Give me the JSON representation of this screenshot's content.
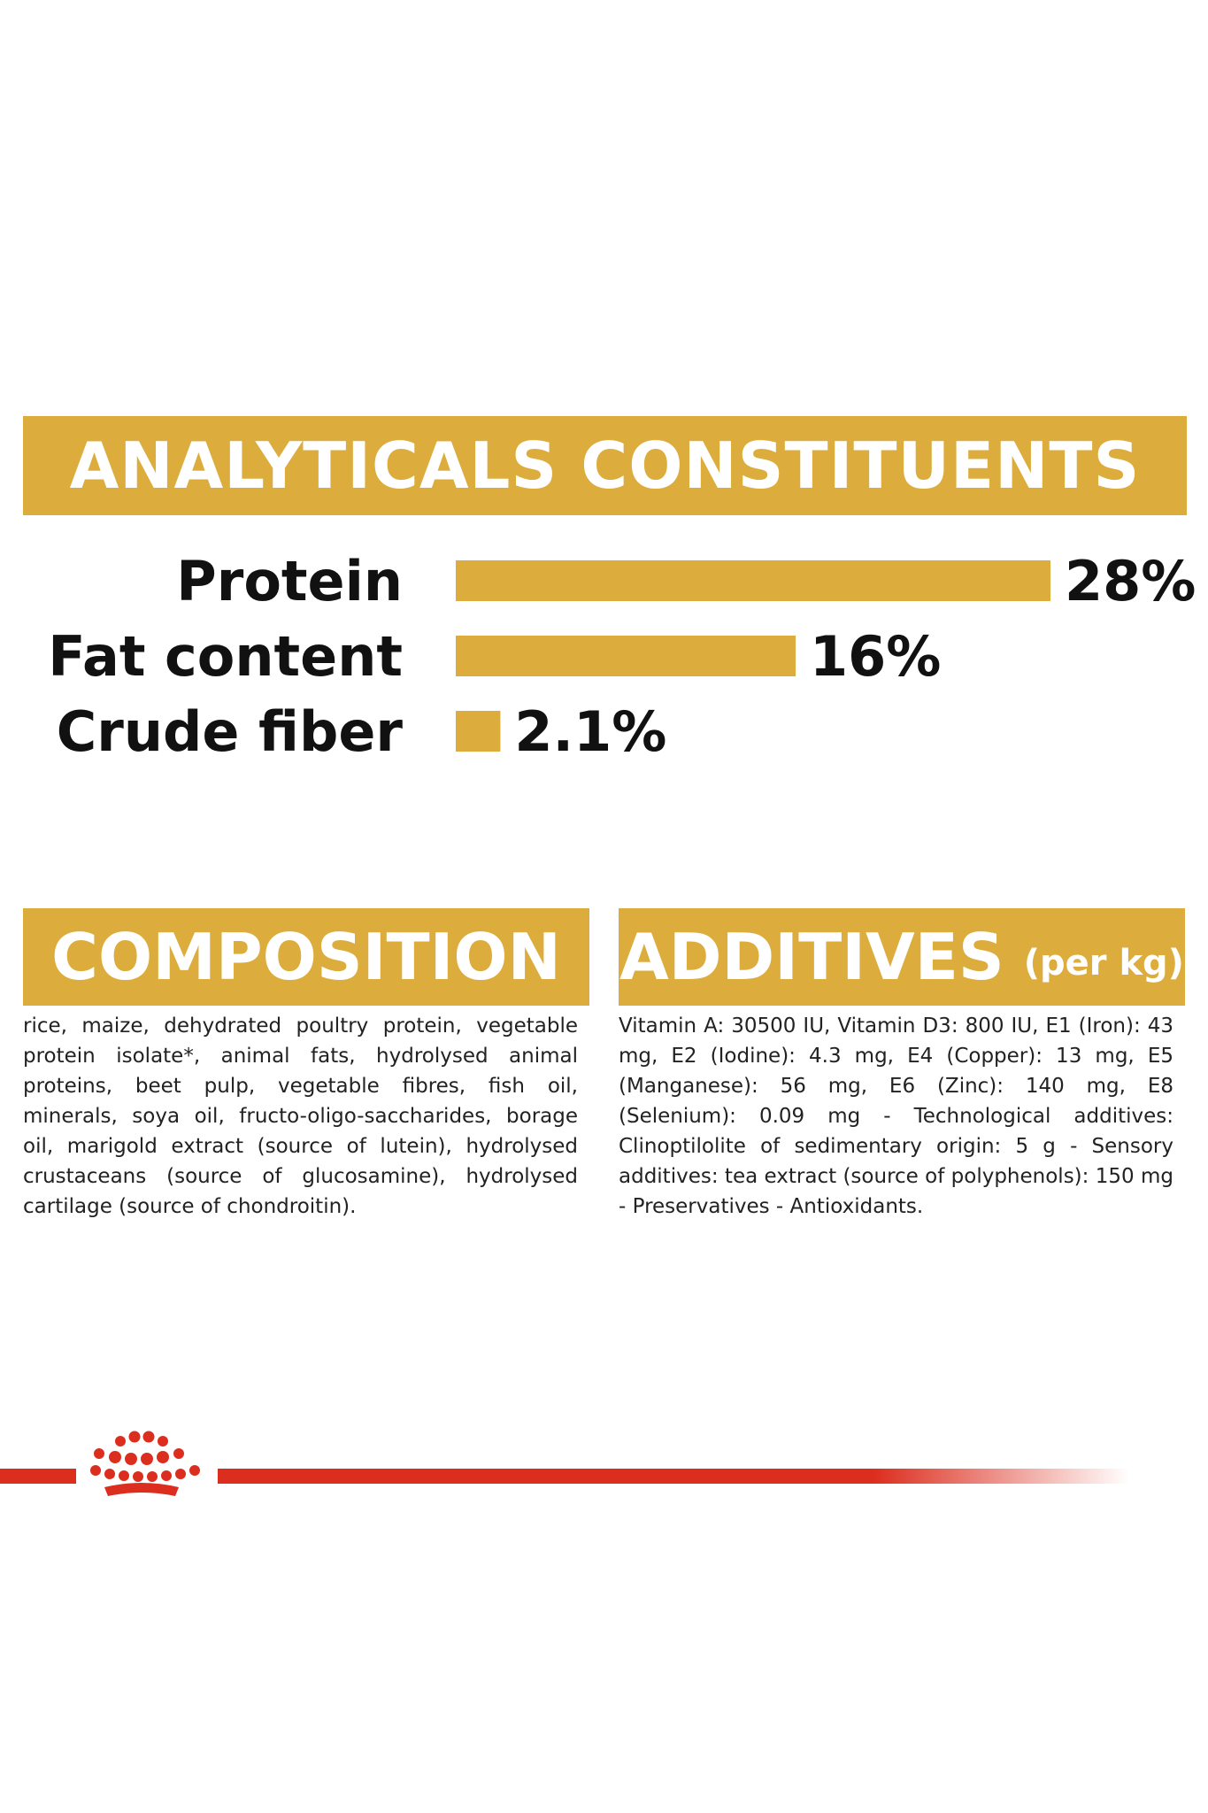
{
  "colors": {
    "gold": "#dcac3c",
    "red": "#dc2e1e",
    "text": "#111111"
  },
  "sections": {
    "analytical_title": "ANALYTICALS CONSTITUENTS",
    "composition_title": "COMPOSITION",
    "additives_title": "ADDITIVES",
    "additives_subtitle": "(per kg)"
  },
  "chart_data": {
    "type": "bar",
    "orientation": "horizontal",
    "title": "ANALYTICALS CONSTITUENTS",
    "categories": [
      "Protein",
      "Fat content",
      "Crude fiber"
    ],
    "values": [
      28,
      16,
      2.1
    ],
    "value_labels": [
      "28%",
      "16%",
      "2.1%"
    ],
    "xlim": [
      0,
      28
    ],
    "grid": false,
    "color": "#dcac3c"
  },
  "composition_text": "rice, maize, dehydrated poultry protein, vegetable protein isolate*, animal fats, hydrolysed animal proteins, beet pulp, vegetable fibres, fish oil, minerals, soya oil, fructo-oligo-saccharides, borage oil, marigold extract (source of lutein), hydrolysed crustaceans (source of glucosamine), hydrolysed cartilage (source of chondroitin).",
  "additives_text": "Vitamin A: 30500 IU, Vitamin D3: 800 IU, E1 (Iron): 43 mg, E2 (Iodine): 4.3 mg, E4 (Copper): 13 mg, E5 (Manganese): 56 mg, E6 (Zinc): 140 mg, E8 (Selenium): 0.09 mg - Technological additives: Clinoptilolite of sedimentary origin: 5 g - Sensory additives: tea extract (source of polyphenols): 150 mg - Preservatives - Antioxidants.",
  "brand": {
    "logo_icon": "crown-icon"
  }
}
